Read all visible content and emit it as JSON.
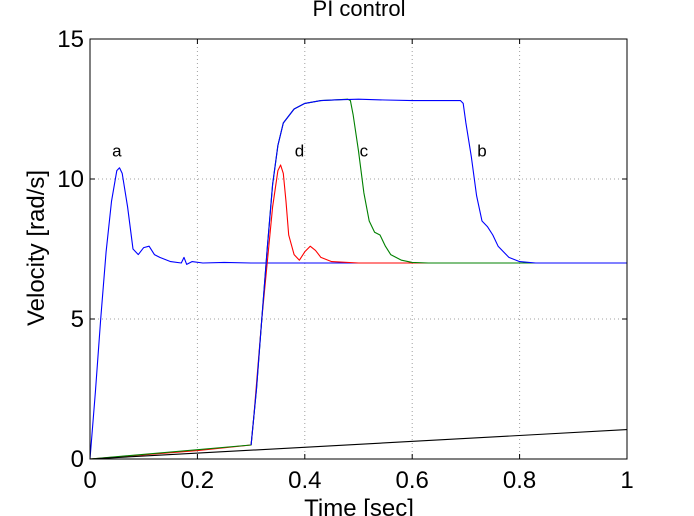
{
  "chart_data": {
    "type": "line",
    "title": "PI control",
    "xlabel": "Time [sec]",
    "ylabel": "Velocity [rad/s]",
    "xlim": [
      0,
      1
    ],
    "ylim": [
      0,
      15
    ],
    "x_ticks": [
      "0",
      "0.2",
      "0.4",
      "0.6",
      "0.8",
      "1"
    ],
    "y_ticks": [
      "0",
      "5",
      "10",
      "15"
    ],
    "grid": true,
    "legend": "none",
    "annotations": [
      {
        "text": "a",
        "x": 0.05,
        "y": 10.8
      },
      {
        "text": "d",
        "x": 0.39,
        "y": 10.8
      },
      {
        "text": "c",
        "x": 0.51,
        "y": 10.8
      },
      {
        "text": "b",
        "x": 0.73,
        "y": 10.8
      }
    ],
    "series": [
      {
        "color": "#0000ff",
        "x": [
          0,
          0.01,
          0.02,
          0.03,
          0.04,
          0.05,
          0.055,
          0.06,
          0.07,
          0.08,
          0.09,
          0.1,
          0.11,
          0.12,
          0.13,
          0.15,
          0.17,
          0.175,
          0.18,
          0.19,
          0.21,
          0.25,
          0.3,
          1.0
        ],
        "y": [
          0,
          2.4,
          5.0,
          7.4,
          9.2,
          10.3,
          10.4,
          10.2,
          9.0,
          7.5,
          7.3,
          7.55,
          7.6,
          7.3,
          7.2,
          7.05,
          7.0,
          7.2,
          6.95,
          7.05,
          7.0,
          7.02,
          7.0,
          7.0
        ]
      },
      {
        "color": "#ff0000",
        "x": [
          0,
          0.1,
          0.2,
          0.3,
          0.305,
          0.32,
          0.33,
          0.34,
          0.35,
          0.355,
          0.36,
          0.365,
          0.37,
          0.38,
          0.39,
          0.4,
          0.41,
          0.42,
          0.43,
          0.45,
          0.5,
          0.6,
          1.0
        ],
        "y": [
          0,
          0.15,
          0.3,
          0.5,
          1.5,
          5.0,
          7.0,
          9.0,
          10.3,
          10.5,
          10.2,
          9.2,
          8.0,
          7.3,
          7.1,
          7.4,
          7.6,
          7.45,
          7.2,
          7.05,
          7.0,
          7.0,
          7.0
        ]
      },
      {
        "color": "#008000",
        "x": [
          0,
          0.3,
          0.31,
          0.32,
          0.33,
          0.34,
          0.35,
          0.36,
          0.38,
          0.4,
          0.43,
          0.46,
          0.48,
          0.485,
          0.49,
          0.5,
          0.51,
          0.52,
          0.53,
          0.54,
          0.55,
          0.56,
          0.58,
          0.6,
          0.63,
          1.0
        ],
        "y": [
          0,
          0.5,
          2.5,
          5.0,
          7.5,
          9.8,
          11.2,
          12.0,
          12.5,
          12.7,
          12.8,
          12.83,
          12.85,
          12.8,
          12.3,
          11.0,
          9.5,
          8.5,
          8.1,
          8.0,
          7.6,
          7.3,
          7.1,
          7.02,
          7.0,
          7.0
        ]
      },
      {
        "color": "#0000ff",
        "x": [
          0.3,
          0.31,
          0.32,
          0.33,
          0.34,
          0.35,
          0.36,
          0.38,
          0.4,
          0.43,
          0.46,
          0.5,
          0.55,
          0.6,
          0.65,
          0.69,
          0.695,
          0.7,
          0.71,
          0.72,
          0.73,
          0.74,
          0.75,
          0.76,
          0.78,
          0.8,
          0.83,
          1.0
        ],
        "y": [
          0.5,
          2.5,
          5.0,
          7.5,
          9.8,
          11.2,
          12.0,
          12.5,
          12.7,
          12.8,
          12.83,
          12.85,
          12.82,
          12.8,
          12.8,
          12.8,
          12.7,
          12.0,
          10.8,
          9.4,
          8.5,
          8.3,
          8.0,
          7.6,
          7.2,
          7.05,
          7.0,
          7.0
        ]
      },
      {
        "color": "#000000",
        "x": [
          0,
          1.0
        ],
        "y": [
          0,
          1.05
        ]
      }
    ]
  }
}
